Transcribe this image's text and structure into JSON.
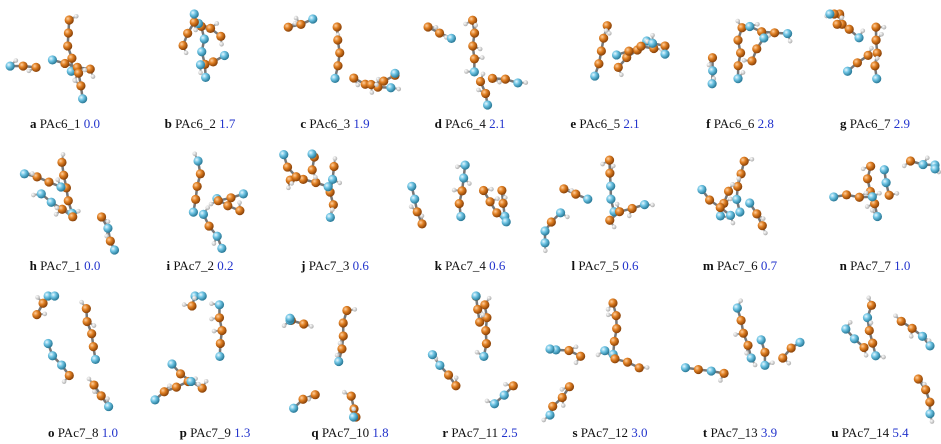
{
  "panels": [
    {
      "letter": "a",
      "name": "PAc6_1",
      "energy": "0.0"
    },
    {
      "letter": "b",
      "name": "PAc6_2",
      "energy": "1.7"
    },
    {
      "letter": "c",
      "name": "PAc6_3",
      "energy": "1.9"
    },
    {
      "letter": "d",
      "name": "PAc6_4",
      "energy": "2.1"
    },
    {
      "letter": "e",
      "name": "PAc6_5",
      "energy": "2.1"
    },
    {
      "letter": "f",
      "name": "PAc6_6",
      "energy": "2.8"
    },
    {
      "letter": "g",
      "name": "PAc6_7",
      "energy": "2.9"
    },
    {
      "letter": "h",
      "name": "PAc7_1",
      "energy": "0.0"
    },
    {
      "letter": "i",
      "name": "PAc7_2",
      "energy": "0.2"
    },
    {
      "letter": "j",
      "name": "PAc7_3",
      "energy": "0.6"
    },
    {
      "letter": "k",
      "name": "PAc7_4",
      "energy": "0.6"
    },
    {
      "letter": "l",
      "name": "PAc7_5",
      "energy": "0.6"
    },
    {
      "letter": "m",
      "name": "PAc7_6",
      "energy": "0.7"
    },
    {
      "letter": "n",
      "name": "PAc7_7",
      "energy": "1.0"
    },
    {
      "letter": "o",
      "name": "PAc7_8",
      "energy": "1.0"
    },
    {
      "letter": "p",
      "name": "PAc7_9",
      "energy": "1.3"
    },
    {
      "letter": "q",
      "name": "PAc7_10",
      "energy": "1.8"
    },
    {
      "letter": "r",
      "name": "PAc7_11",
      "energy": "2.5"
    },
    {
      "letter": "s",
      "name": "PAc7_12",
      "energy": "3.0"
    },
    {
      "letter": "t",
      "name": "PAc7_13",
      "energy": "3.9"
    },
    {
      "letter": "u",
      "name": "PAc7_14",
      "energy": "5.4"
    }
  ]
}
